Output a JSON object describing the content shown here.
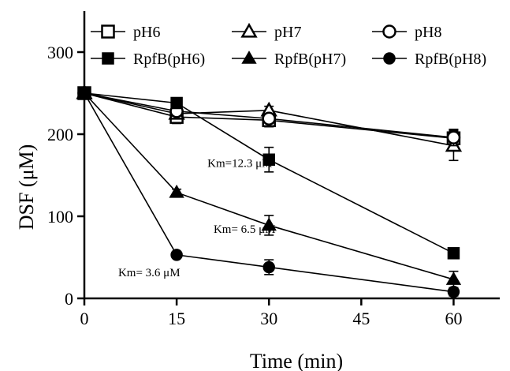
{
  "chart_data": {
    "type": "line",
    "xlabel": "Time (min)",
    "ylabel": "DSF (μM)",
    "xlim": [
      0,
      67.5
    ],
    "ylim": [
      0,
      350
    ],
    "xticks": [
      0,
      15,
      30,
      45,
      60
    ],
    "yticks": [
      0,
      100,
      200,
      300
    ],
    "grid": false,
    "legend_position": "top",
    "series": [
      {
        "name": "pH6",
        "marker": "square",
        "filled": false,
        "x": [
          0,
          15,
          30,
          60
        ],
        "y": [
          250,
          221,
          217,
          195
        ],
        "err": [
          0,
          8,
          8,
          10
        ]
      },
      {
        "name": "pH7",
        "marker": "triangle",
        "filled": false,
        "x": [
          0,
          15,
          30,
          60
        ],
        "y": [
          250,
          225,
          229,
          186
        ],
        "err": [
          0,
          5,
          5,
          18
        ]
      },
      {
        "name": "pH8",
        "marker": "circle",
        "filled": false,
        "x": [
          0,
          15,
          30,
          60
        ],
        "y": [
          250,
          228,
          219,
          196
        ],
        "err": [
          0,
          4,
          5,
          10
        ]
      },
      {
        "name": "RpfB(pH6)",
        "marker": "square",
        "filled": true,
        "x": [
          0,
          15,
          30,
          60
        ],
        "y": [
          250,
          238,
          169,
          55
        ],
        "err": [
          0,
          5,
          15,
          4
        ]
      },
      {
        "name": "RpfB(pH7)",
        "marker": "triangle",
        "filled": true,
        "x": [
          0,
          15,
          30,
          60
        ],
        "y": [
          250,
          129,
          89,
          23
        ],
        "err": [
          0,
          4,
          12,
          10
        ]
      },
      {
        "name": "RpfB(pH8)",
        "marker": "circle",
        "filled": true,
        "x": [
          0,
          15,
          30,
          60
        ],
        "y": [
          250,
          53,
          38,
          8
        ],
        "err": [
          0,
          3,
          9,
          5
        ]
      }
    ],
    "annotations": [
      {
        "text": "Km=12.3 μM",
        "x": 20,
        "y": 160
      },
      {
        "text": "Km= 6.5 μM",
        "x": 21,
        "y": 80
      },
      {
        "text": "Km= 3.6 μM",
        "x": 5.5,
        "y": 27
      }
    ]
  }
}
